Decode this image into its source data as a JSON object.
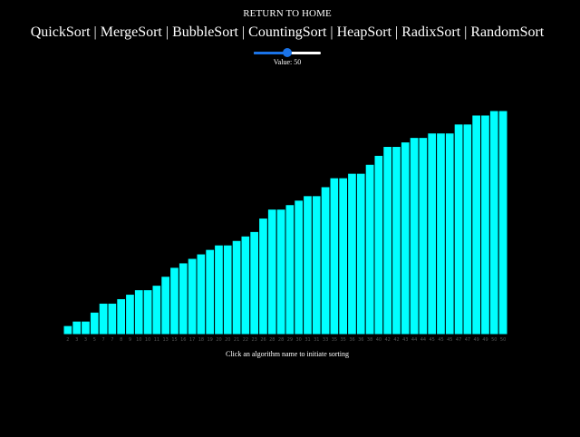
{
  "header": {
    "home_label": "RETURN TO HOME"
  },
  "nav": {
    "separator": "|",
    "algorithms": [
      "QuickSort",
      "MergeSort",
      "BubbleSort",
      "CountingSort",
      "HeapSort",
      "RadixSort",
      "RandomSort"
    ]
  },
  "slider": {
    "min": 0,
    "max": 100,
    "value": 50,
    "value_text": "Value: 50",
    "accent_color": "#1a73e8"
  },
  "instruction": "Click an algorithm name to initiate sorting",
  "chart_data": {
    "type": "bar",
    "bar_color": "#00ffff",
    "bar_border_color": "#000000",
    "label_color": "#555555",
    "values": [
      2,
      3,
      3,
      5,
      7,
      7,
      8,
      9,
      10,
      10,
      11,
      13,
      15,
      16,
      17,
      18,
      19,
      20,
      20,
      21,
      22,
      23,
      26,
      28,
      28,
      29,
      30,
      31,
      31,
      33,
      35,
      35,
      36,
      36,
      38,
      40,
      42,
      42,
      43,
      44,
      44,
      45,
      45,
      45,
      47,
      47,
      49,
      49,
      50,
      50
    ]
  }
}
